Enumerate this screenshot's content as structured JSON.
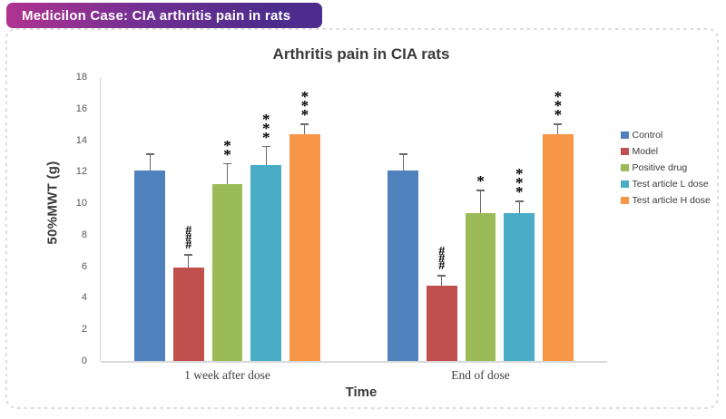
{
  "header": {
    "title": "Medicilon Case: CIA arthritis pain in rats",
    "gradient_left": "#B03390",
    "gradient_right": "#4C2C8C"
  },
  "chart_data": {
    "type": "bar",
    "title": "Arthritis pain in CIA rats",
    "xlabel": "Time",
    "ylabel": "50%MWT (g)",
    "ylim": [
      0,
      18
    ],
    "ytick_step": 2,
    "categories": [
      "1 week after dose",
      "End of dose"
    ],
    "series": [
      {
        "name": "Control",
        "color": "#4F81BD",
        "values": [
          12.1,
          12.1
        ],
        "errors": [
          1.0,
          1.0
        ],
        "annotations": [
          "",
          ""
        ]
      },
      {
        "name": "Model",
        "color": "#C0504D",
        "values": [
          5.9,
          4.8
        ],
        "errors": [
          0.8,
          0.6
        ],
        "annotations": [
          "###",
          "###"
        ]
      },
      {
        "name": "Positive drug",
        "color": "#9BBB59",
        "values": [
          11.2,
          9.4
        ],
        "errors": [
          1.3,
          1.4
        ],
        "annotations": [
          "**",
          "*"
        ]
      },
      {
        "name": "Test article L dose",
        "color": "#4BACC6",
        "values": [
          12.4,
          9.4
        ],
        "errors": [
          1.2,
          0.7
        ],
        "annotations": [
          "***",
          "***"
        ]
      },
      {
        "name": "Test article H dose",
        "color": "#F79646",
        "values": [
          14.4,
          14.4
        ],
        "errors": [
          0.6,
          0.6
        ],
        "annotations": [
          "***",
          "***"
        ]
      }
    ],
    "legend_position": "right",
    "grid": false
  }
}
